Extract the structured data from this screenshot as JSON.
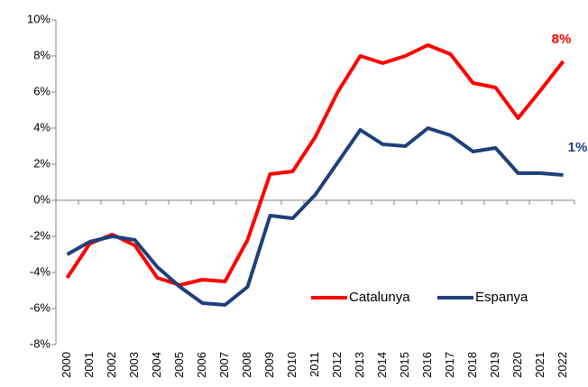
{
  "chart_data": {
    "type": "line",
    "categories": [
      "2000",
      "2001",
      "2002",
      "2003",
      "2004",
      "2005",
      "2006",
      "2007",
      "2008",
      "2009",
      "2010",
      "2011",
      "2012",
      "2013",
      "2014",
      "2015",
      "2016",
      "2017",
      "2018",
      "2019",
      "2020",
      "2021",
      "2022"
    ],
    "series": [
      {
        "name": "Catalunya",
        "color": "#ff0000",
        "values": [
          -4.3,
          -2.4,
          -1.9,
          -2.5,
          -4.3,
          -4.7,
          -4.4,
          -4.5,
          -2.2,
          1.45,
          1.6,
          3.5,
          6.0,
          8.0,
          7.6,
          8.0,
          8.6,
          8.1,
          6.5,
          6.25,
          4.55,
          6.1,
          7.7
        ],
        "value_labels": [
          null,
          null,
          null,
          null,
          null,
          null,
          null,
          null,
          null,
          null,
          null,
          null,
          null,
          null,
          null,
          null,
          null,
          null,
          null,
          null,
          null,
          null,
          "8%"
        ]
      },
      {
        "name": "Espanya",
        "color": "#1f3f7a",
        "values": [
          -3.0,
          -2.3,
          -2.0,
          -2.2,
          -3.7,
          -4.8,
          -5.7,
          -5.8,
          -4.8,
          -0.85,
          -1.0,
          0.3,
          2.1,
          3.9,
          3.1,
          3.0,
          4.0,
          3.6,
          2.7,
          2.9,
          1.5,
          1.5,
          1.4
        ],
        "value_labels": [
          null,
          null,
          null,
          null,
          null,
          null,
          null,
          null,
          null,
          null,
          null,
          null,
          null,
          null,
          null,
          null,
          null,
          null,
          null,
          null,
          null,
          null,
          "1%"
        ]
      }
    ],
    "ylim": [
      -8,
      10
    ],
    "yticks": [
      {
        "value": -8,
        "label": "-8%"
      },
      {
        "value": -6,
        "label": "-6%"
      },
      {
        "value": -4,
        "label": "-4%"
      },
      {
        "value": -2,
        "label": "-2%"
      },
      {
        "value": 0,
        "label": "0%"
      },
      {
        "value": 2,
        "label": "2%"
      },
      {
        "value": 4,
        "label": "4%"
      },
      {
        "value": 6,
        "label": "6%"
      },
      {
        "value": 8,
        "label": "8%"
      },
      {
        "value": 10,
        "label": "10%"
      }
    ],
    "grid": false,
    "legend": "lower right"
  }
}
